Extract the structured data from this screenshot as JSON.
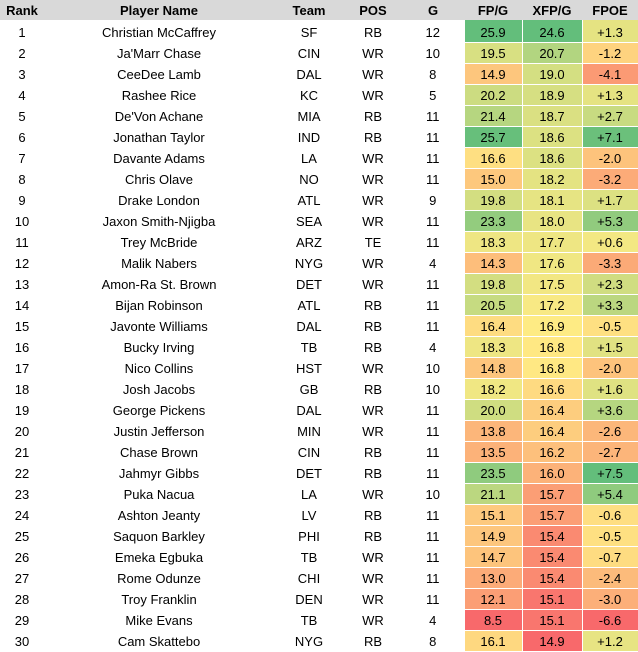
{
  "table": {
    "headers": {
      "rank": "Rank",
      "name": "Player Name",
      "team": "Team",
      "pos": "POS",
      "g": "G",
      "fpg": "FP/G",
      "xfpg": "XFP/G",
      "fpoe": "FPOE"
    },
    "rows": [
      {
        "rank": "1",
        "name": "Christian McCaffrey",
        "team": "SF",
        "pos": "RB",
        "g": "12",
        "fpg": "25.9",
        "xfpg": "24.6",
        "fpoe": "+1.3"
      },
      {
        "rank": "2",
        "name": "Ja'Marr Chase",
        "team": "CIN",
        "pos": "WR",
        "g": "10",
        "fpg": "19.5",
        "xfpg": "20.7",
        "fpoe": "-1.2"
      },
      {
        "rank": "3",
        "name": "CeeDee Lamb",
        "team": "DAL",
        "pos": "WR",
        "g": "8",
        "fpg": "14.9",
        "xfpg": "19.0",
        "fpoe": "-4.1"
      },
      {
        "rank": "4",
        "name": "Rashee Rice",
        "team": "KC",
        "pos": "WR",
        "g": "5",
        "fpg": "20.2",
        "xfpg": "18.9",
        "fpoe": "+1.3"
      },
      {
        "rank": "5",
        "name": "De'Von Achane",
        "team": "MIA",
        "pos": "RB",
        "g": "11",
        "fpg": "21.4",
        "xfpg": "18.7",
        "fpoe": "+2.7"
      },
      {
        "rank": "6",
        "name": "Jonathan Taylor",
        "team": "IND",
        "pos": "RB",
        "g": "11",
        "fpg": "25.7",
        "xfpg": "18.6",
        "fpoe": "+7.1"
      },
      {
        "rank": "7",
        "name": "Davante Adams",
        "team": "LA",
        "pos": "WR",
        "g": "11",
        "fpg": "16.6",
        "xfpg": "18.6",
        "fpoe": "-2.0"
      },
      {
        "rank": "8",
        "name": "Chris Olave",
        "team": "NO",
        "pos": "WR",
        "g": "11",
        "fpg": "15.0",
        "xfpg": "18.2",
        "fpoe": "-3.2"
      },
      {
        "rank": "9",
        "name": "Drake London",
        "team": "ATL",
        "pos": "WR",
        "g": "9",
        "fpg": "19.8",
        "xfpg": "18.1",
        "fpoe": "+1.7"
      },
      {
        "rank": "10",
        "name": "Jaxon Smith-Njigba",
        "team": "SEA",
        "pos": "WR",
        "g": "11",
        "fpg": "23.3",
        "xfpg": "18.0",
        "fpoe": "+5.3"
      },
      {
        "rank": "11",
        "name": "Trey McBride",
        "team": "ARZ",
        "pos": "TE",
        "g": "11",
        "fpg": "18.3",
        "xfpg": "17.7",
        "fpoe": "+0.6"
      },
      {
        "rank": "12",
        "name": "Malik Nabers",
        "team": "NYG",
        "pos": "WR",
        "g": "4",
        "fpg": "14.3",
        "xfpg": "17.6",
        "fpoe": "-3.3"
      },
      {
        "rank": "13",
        "name": "Amon-Ra St. Brown",
        "team": "DET",
        "pos": "WR",
        "g": "11",
        "fpg": "19.8",
        "xfpg": "17.5",
        "fpoe": "+2.3"
      },
      {
        "rank": "14",
        "name": "Bijan Robinson",
        "team": "ATL",
        "pos": "RB",
        "g": "11",
        "fpg": "20.5",
        "xfpg": "17.2",
        "fpoe": "+3.3"
      },
      {
        "rank": "15",
        "name": "Javonte Williams",
        "team": "DAL",
        "pos": "RB",
        "g": "11",
        "fpg": "16.4",
        "xfpg": "16.9",
        "fpoe": "-0.5"
      },
      {
        "rank": "16",
        "name": "Bucky Irving",
        "team": "TB",
        "pos": "RB",
        "g": "4",
        "fpg": "18.3",
        "xfpg": "16.8",
        "fpoe": "+1.5"
      },
      {
        "rank": "17",
        "name": "Nico Collins",
        "team": "HST",
        "pos": "WR",
        "g": "10",
        "fpg": "14.8",
        "xfpg": "16.8",
        "fpoe": "-2.0"
      },
      {
        "rank": "18",
        "name": "Josh Jacobs",
        "team": "GB",
        "pos": "RB",
        "g": "10",
        "fpg": "18.2",
        "xfpg": "16.6",
        "fpoe": "+1.6"
      },
      {
        "rank": "19",
        "name": "George Pickens",
        "team": "DAL",
        "pos": "WR",
        "g": "11",
        "fpg": "20.0",
        "xfpg": "16.4",
        "fpoe": "+3.6"
      },
      {
        "rank": "20",
        "name": "Justin Jefferson",
        "team": "MIN",
        "pos": "WR",
        "g": "11",
        "fpg": "13.8",
        "xfpg": "16.4",
        "fpoe": "-2.6"
      },
      {
        "rank": "21",
        "name": "Chase Brown",
        "team": "CIN",
        "pos": "RB",
        "g": "11",
        "fpg": "13.5",
        "xfpg": "16.2",
        "fpoe": "-2.7"
      },
      {
        "rank": "22",
        "name": "Jahmyr Gibbs",
        "team": "DET",
        "pos": "RB",
        "g": "11",
        "fpg": "23.5",
        "xfpg": "16.0",
        "fpoe": "+7.5"
      },
      {
        "rank": "23",
        "name": "Puka Nacua",
        "team": "LA",
        "pos": "WR",
        "g": "10",
        "fpg": "21.1",
        "xfpg": "15.7",
        "fpoe": "+5.4"
      },
      {
        "rank": "24",
        "name": "Ashton Jeanty",
        "team": "LV",
        "pos": "RB",
        "g": "11",
        "fpg": "15.1",
        "xfpg": "15.7",
        "fpoe": "-0.6"
      },
      {
        "rank": "25",
        "name": "Saquon Barkley",
        "team": "PHI",
        "pos": "RB",
        "g": "11",
        "fpg": "14.9",
        "xfpg": "15.4",
        "fpoe": "-0.5"
      },
      {
        "rank": "26",
        "name": "Emeka Egbuka",
        "team": "TB",
        "pos": "WR",
        "g": "11",
        "fpg": "14.7",
        "xfpg": "15.4",
        "fpoe": "-0.7"
      },
      {
        "rank": "27",
        "name": "Rome Odunze",
        "team": "CHI",
        "pos": "WR",
        "g": "11",
        "fpg": "13.0",
        "xfpg": "15.4",
        "fpoe": "-2.4"
      },
      {
        "rank": "28",
        "name": "Troy Franklin",
        "team": "DEN",
        "pos": "WR",
        "g": "11",
        "fpg": "12.1",
        "xfpg": "15.1",
        "fpoe": "-3.0"
      },
      {
        "rank": "29",
        "name": "Mike Evans",
        "team": "TB",
        "pos": "WR",
        "g": "4",
        "fpg": "8.5",
        "xfpg": "15.1",
        "fpoe": "-6.6"
      },
      {
        "rank": "30",
        "name": "Cam Skattebo",
        "team": "NYG",
        "pos": "RB",
        "g": "8",
        "fpg": "16.1",
        "xfpg": "14.9",
        "fpoe": "+1.2"
      }
    ]
  },
  "colors": {
    "scale_low": "#f8696b",
    "scale_mid": "#ffeb84",
    "scale_high": "#63be7b"
  }
}
